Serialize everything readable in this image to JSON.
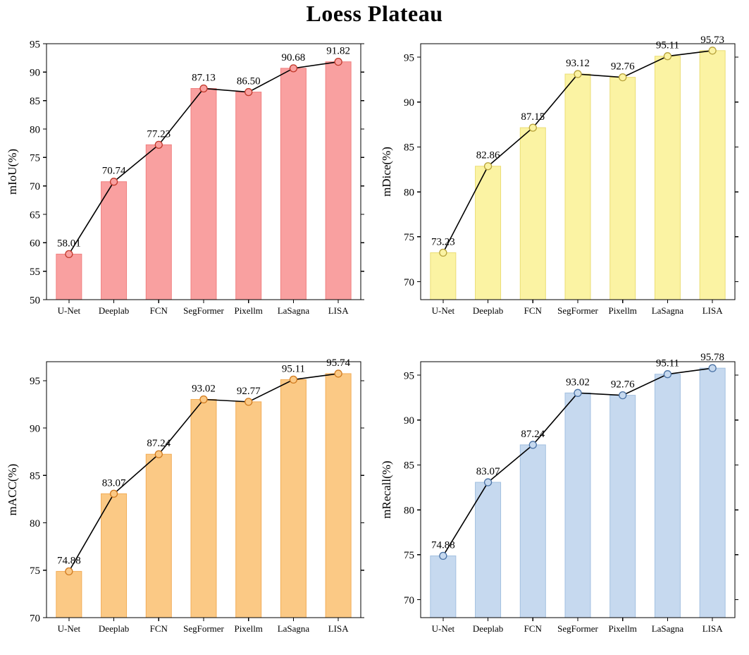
{
  "page": {
    "title": "Loess Plateau"
  },
  "chart_data": [
    {
      "type": "bar",
      "title": "Loess Plateau",
      "ylabel": "mIoU(%)",
      "categories": [
        "U-Net",
        "Deeplab",
        "FCN",
        "SegFormer",
        "Pixellm",
        "LaSagna",
        "LISA"
      ],
      "values": [
        58.01,
        70.74,
        77.23,
        87.13,
        86.5,
        90.68,
        91.82
      ],
      "value_labels": [
        "58.01",
        "70.74",
        "77.23",
        "87.13",
        "86.50",
        "90.68",
        "91.82"
      ],
      "ylim": [
        50,
        95
      ],
      "yticks": [
        50,
        55,
        60,
        65,
        70,
        75,
        80,
        85,
        90,
        95
      ],
      "grid": false,
      "legend": "none",
      "overlay": "line-with-markers",
      "bar_fill": "#F9A0A0",
      "bar_edge": "#F08080",
      "marker_fill": "#F9A0A0",
      "marker_stroke": "#C0392B",
      "line_color": "#000000"
    },
    {
      "type": "bar",
      "title": "Loess Plateau",
      "ylabel": "mDice(%)",
      "categories": [
        "U-Net",
        "Deeplab",
        "FCN",
        "SegFormer",
        "Pixellm",
        "LaSagna",
        "LISA"
      ],
      "values": [
        73.23,
        82.86,
        87.15,
        93.12,
        92.76,
        95.11,
        95.73
      ],
      "value_labels": [
        "73.23",
        "82.86",
        "87.15",
        "93.12",
        "92.76",
        "95.11",
        "95.73"
      ],
      "ylim": [
        68,
        96.5
      ],
      "yticks": [
        70,
        75,
        80,
        85,
        90,
        95
      ],
      "grid": false,
      "legend": "none",
      "overlay": "line-with-markers",
      "bar_fill": "#FBF3A3",
      "bar_edge": "#EBDD76",
      "marker_fill": "#FBF3A3",
      "marker_stroke": "#B7A23A",
      "line_color": "#000000"
    },
    {
      "type": "bar",
      "title": "Loess Plateau",
      "ylabel": "mACC(%)",
      "categories": [
        "U-Net",
        "Deeplab",
        "FCN",
        "SegFormer",
        "Pixellm",
        "LaSagna",
        "LISA"
      ],
      "values": [
        74.88,
        83.07,
        87.24,
        93.02,
        92.77,
        95.11,
        95.74
      ],
      "value_labels": [
        "74.88",
        "83.07",
        "87.24",
        "93.02",
        "92.77",
        "95.11",
        "95.74"
      ],
      "ylim": [
        70,
        97
      ],
      "yticks": [
        70,
        75,
        80,
        85,
        90,
        95
      ],
      "grid": false,
      "legend": "none",
      "overlay": "line-with-markers",
      "bar_fill": "#FBC985",
      "bar_edge": "#F2AD58",
      "marker_fill": "#FBC985",
      "marker_stroke": "#D07A1F",
      "line_color": "#000000"
    },
    {
      "type": "bar",
      "title": "Loess Plateau",
      "ylabel": "mRecall(%)",
      "categories": [
        "U-Net",
        "Deeplab",
        "FCN",
        "SegFormer",
        "Pixellm",
        "LaSagna",
        "LISA"
      ],
      "values": [
        74.88,
        83.07,
        87.24,
        93.02,
        92.76,
        95.11,
        95.78
      ],
      "value_labels": [
        "74.88",
        "83.07",
        "87.24",
        "93.02",
        "92.76",
        "95.11",
        "95.78"
      ],
      "ylim": [
        68,
        96.5
      ],
      "yticks": [
        70,
        75,
        80,
        85,
        90,
        95
      ],
      "grid": false,
      "legend": "none",
      "overlay": "line-with-markers",
      "bar_fill": "#C6D9EF",
      "bar_edge": "#A3C0E0",
      "marker_fill": "#C6D9EF",
      "marker_stroke": "#4A72A5",
      "line_color": "#000000"
    }
  ]
}
